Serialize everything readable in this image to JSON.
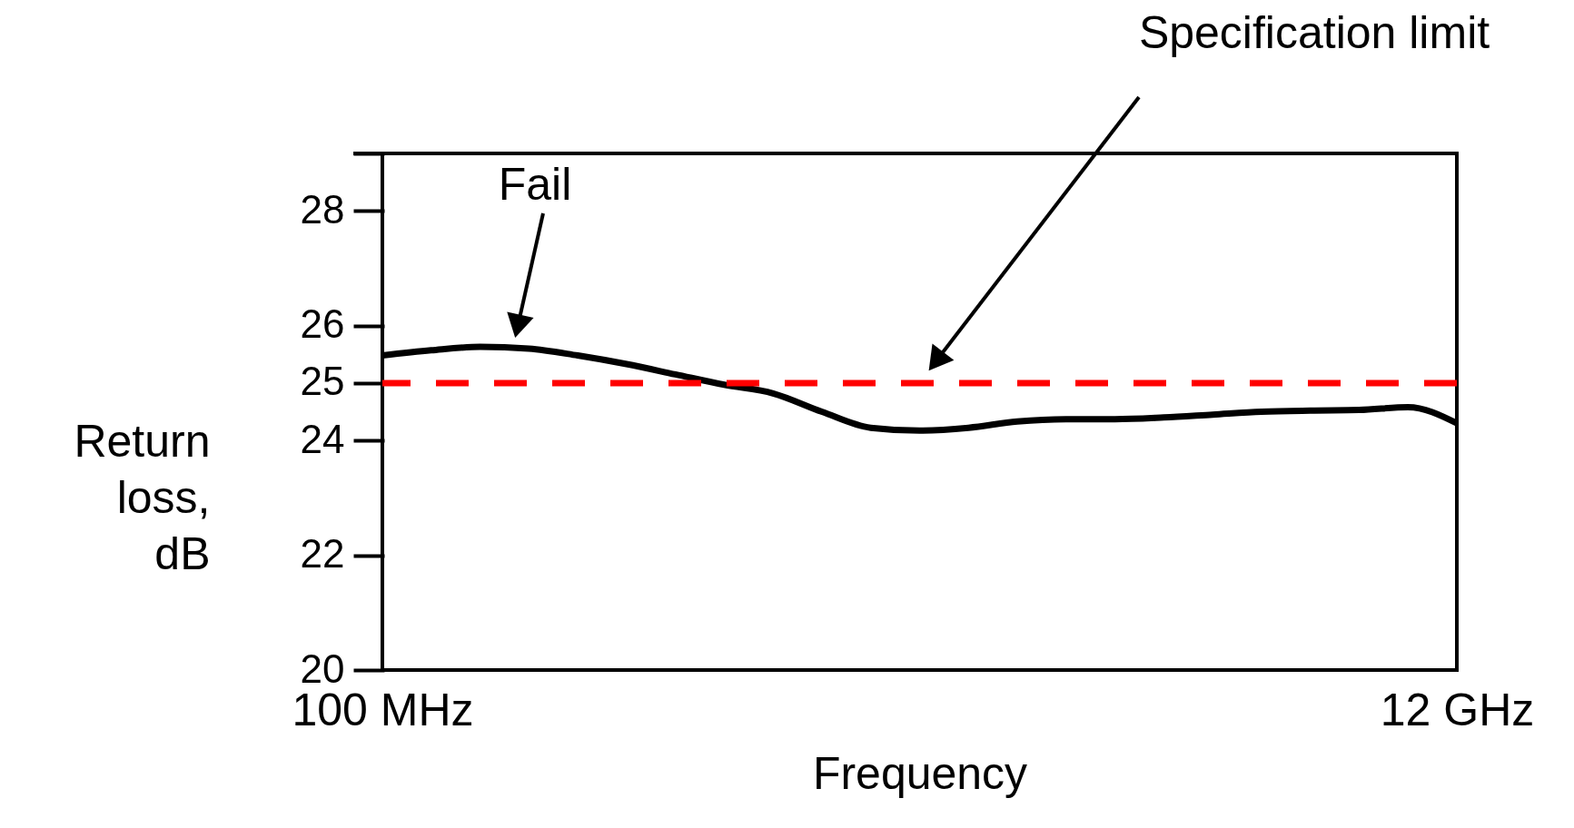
{
  "chart_data": {
    "type": "line",
    "xlabel": "Frequency",
    "ylabel": "Return loss, dB",
    "categories": [
      "100 MHz",
      null,
      null,
      null,
      null,
      null,
      null,
      null,
      null,
      null,
      null,
      null,
      null,
      null,
      null,
      null,
      null,
      null,
      null,
      null,
      null,
      null,
      "12 GHz"
    ],
    "series": [
      {
        "color": "#000000",
        "values": [
          25.48,
          25.57,
          25.63,
          25.6,
          25.48,
          25.33,
          25.15,
          24.97,
          24.82,
          24.5,
          24.22,
          24.17,
          24.22,
          24.33,
          24.37,
          24.37,
          24.4,
          24.45,
          24.5,
          24.52,
          24.53,
          24.58,
          24.3
        ]
      }
    ],
    "ylim": [
      20,
      29
    ],
    "yticks": [
      20,
      22,
      24,
      25,
      26,
      28,
      {
        "value": 29,
        "label": null
      }
    ],
    "ref_lines": [
      {
        "axis": "y",
        "value": 25,
        "color": "#ff0000",
        "line_style": "dashed"
      }
    ],
    "annotations": [
      "Fail",
      "Specification limit"
    ],
    "grid": false,
    "legend": false,
    "marker": "none",
    "line_style": "solid"
  }
}
